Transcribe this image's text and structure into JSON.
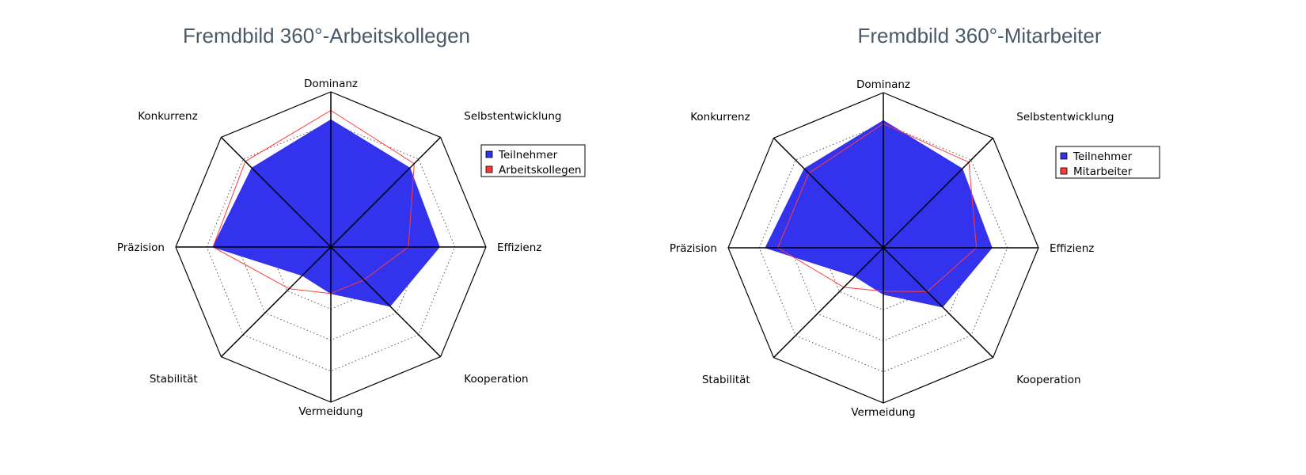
{
  "chart_data": [
    {
      "type": "radar",
      "title": "Fremdbild 360°-Arbeitskollegen",
      "categories": [
        "Dominanz",
        "Selbstentwicklung",
        "Effizienz",
        "Kooperation",
        "Vermeidung",
        "Stabilität",
        "Präzision",
        "Konkurrenz"
      ],
      "rlim": [
        0,
        5
      ],
      "rings": 5,
      "grid": true,
      "legend_position": "right",
      "series": [
        {
          "name": "Teilnehmer",
          "values": [
            4.1,
            3.6,
            3.5,
            2.7,
            1.5,
            1.3,
            3.8,
            3.6
          ],
          "color": "#3333ee",
          "style": "filled"
        },
        {
          "name": "Arbeitskollegen",
          "values": [
            4.4,
            3.8,
            2.5,
            1.5,
            1.5,
            1.9,
            3.8,
            3.9
          ],
          "color": "#ff3b3b",
          "style": "line"
        }
      ]
    },
    {
      "type": "radar",
      "title": "Fremdbild 360°-Mitarbeiter",
      "categories": [
        "Dominanz",
        "Selbstentwicklung",
        "Effizienz",
        "Kooperation",
        "Vermeidung",
        "Stabilität",
        "Präzision",
        "Konkurrenz"
      ],
      "rlim": [
        0,
        5
      ],
      "rings": 5,
      "grid": true,
      "legend_position": "right",
      "series": [
        {
          "name": "Teilnehmer",
          "values": [
            4.1,
            3.6,
            3.5,
            2.7,
            1.5,
            1.3,
            3.8,
            3.6
          ],
          "color": "#3333ee",
          "style": "filled"
        },
        {
          "name": "Mitarbeiter",
          "values": [
            4.0,
            3.9,
            3.0,
            2.0,
            1.4,
            1.8,
            3.4,
            3.4
          ],
          "color": "#ff3b3b",
          "style": "line"
        }
      ]
    }
  ]
}
